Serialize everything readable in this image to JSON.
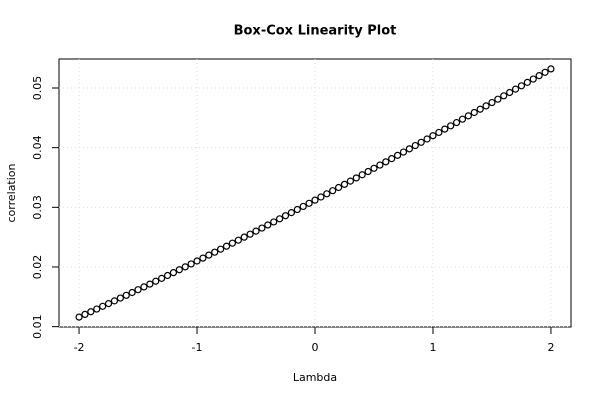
{
  "chart_data": {
    "type": "scatter",
    "title": "Box-Cox Linearity Plot",
    "x_label": "Lambda",
    "y_label": "correlation",
    "series": [
      {
        "color": "#000000",
        "x": [
          -2,
          -1.95,
          -1.9,
          -1.85,
          -1.8,
          -1.75,
          -1.7,
          -1.65,
          -1.6,
          -1.55,
          -1.5,
          -1.45,
          -1.4,
          -1.35,
          -1.3,
          -1.25,
          -1.2,
          -1.15,
          -1.1,
          -1.05,
          -1,
          -0.95,
          -0.9,
          -0.85,
          -0.8,
          -0.75,
          -0.7,
          -0.65,
          -0.6,
          -0.55,
          -0.5,
          -0.45,
          -0.4,
          -0.35,
          -0.3,
          -0.25,
          -0.2,
          -0.15,
          -0.1,
          -0.05,
          0,
          0.05,
          0.1,
          0.15,
          0.2,
          0.25,
          0.3,
          0.35,
          0.4,
          0.45,
          0.5,
          0.55,
          0.6,
          0.65,
          0.7,
          0.75,
          0.8,
          0.85,
          0.9,
          0.95,
          1,
          1.05,
          1.1,
          1.15,
          1.2,
          1.25,
          1.3,
          1.35,
          1.4,
          1.45,
          1.5,
          1.55,
          1.6,
          1.65,
          1.7,
          1.75,
          1.8,
          1.85,
          1.9,
          1.95,
          2
        ],
        "values": [
          0.0116,
          0.01205,
          0.0125,
          0.01295,
          0.01341,
          0.01386,
          0.01432,
          0.01479,
          0.01525,
          0.01572,
          0.01619,
          0.01666,
          0.01713,
          0.01761,
          0.01809,
          0.01857,
          0.01905,
          0.01954,
          0.02002,
          0.02051,
          0.021,
          0.02149,
          0.02199,
          0.02248,
          0.02298,
          0.02348,
          0.02399,
          0.02449,
          0.025,
          0.0255,
          0.02601,
          0.02652,
          0.02704,
          0.02755,
          0.02807,
          0.02859,
          0.02911,
          0.02963,
          0.03015,
          0.03067,
          0.0312,
          0.03173,
          0.03226,
          0.03279,
          0.03332,
          0.03385,
          0.03439,
          0.03492,
          0.03546,
          0.036,
          0.03654,
          0.03708,
          0.03762,
          0.03816,
          0.03871,
          0.03926,
          0.0398,
          0.04035,
          0.0409,
          0.04145,
          0.042,
          0.04255,
          0.04311,
          0.04366,
          0.04421,
          0.04477,
          0.04533,
          0.04589,
          0.04644,
          0.047,
          0.04756,
          0.04812,
          0.04869,
          0.04925,
          0.04981,
          0.05037,
          0.05094,
          0.0515,
          0.05207,
          0.05263,
          0.0532
        ]
      }
    ],
    "xlim": [
      -2.17,
      2.17
    ],
    "ylim": [
      0.00994,
      0.05486
    ],
    "xticks": [
      -2,
      -1,
      0,
      1,
      2
    ],
    "yticks": [
      0.01,
      0.02,
      0.03,
      0.04,
      0.05
    ],
    "grid": true
  }
}
